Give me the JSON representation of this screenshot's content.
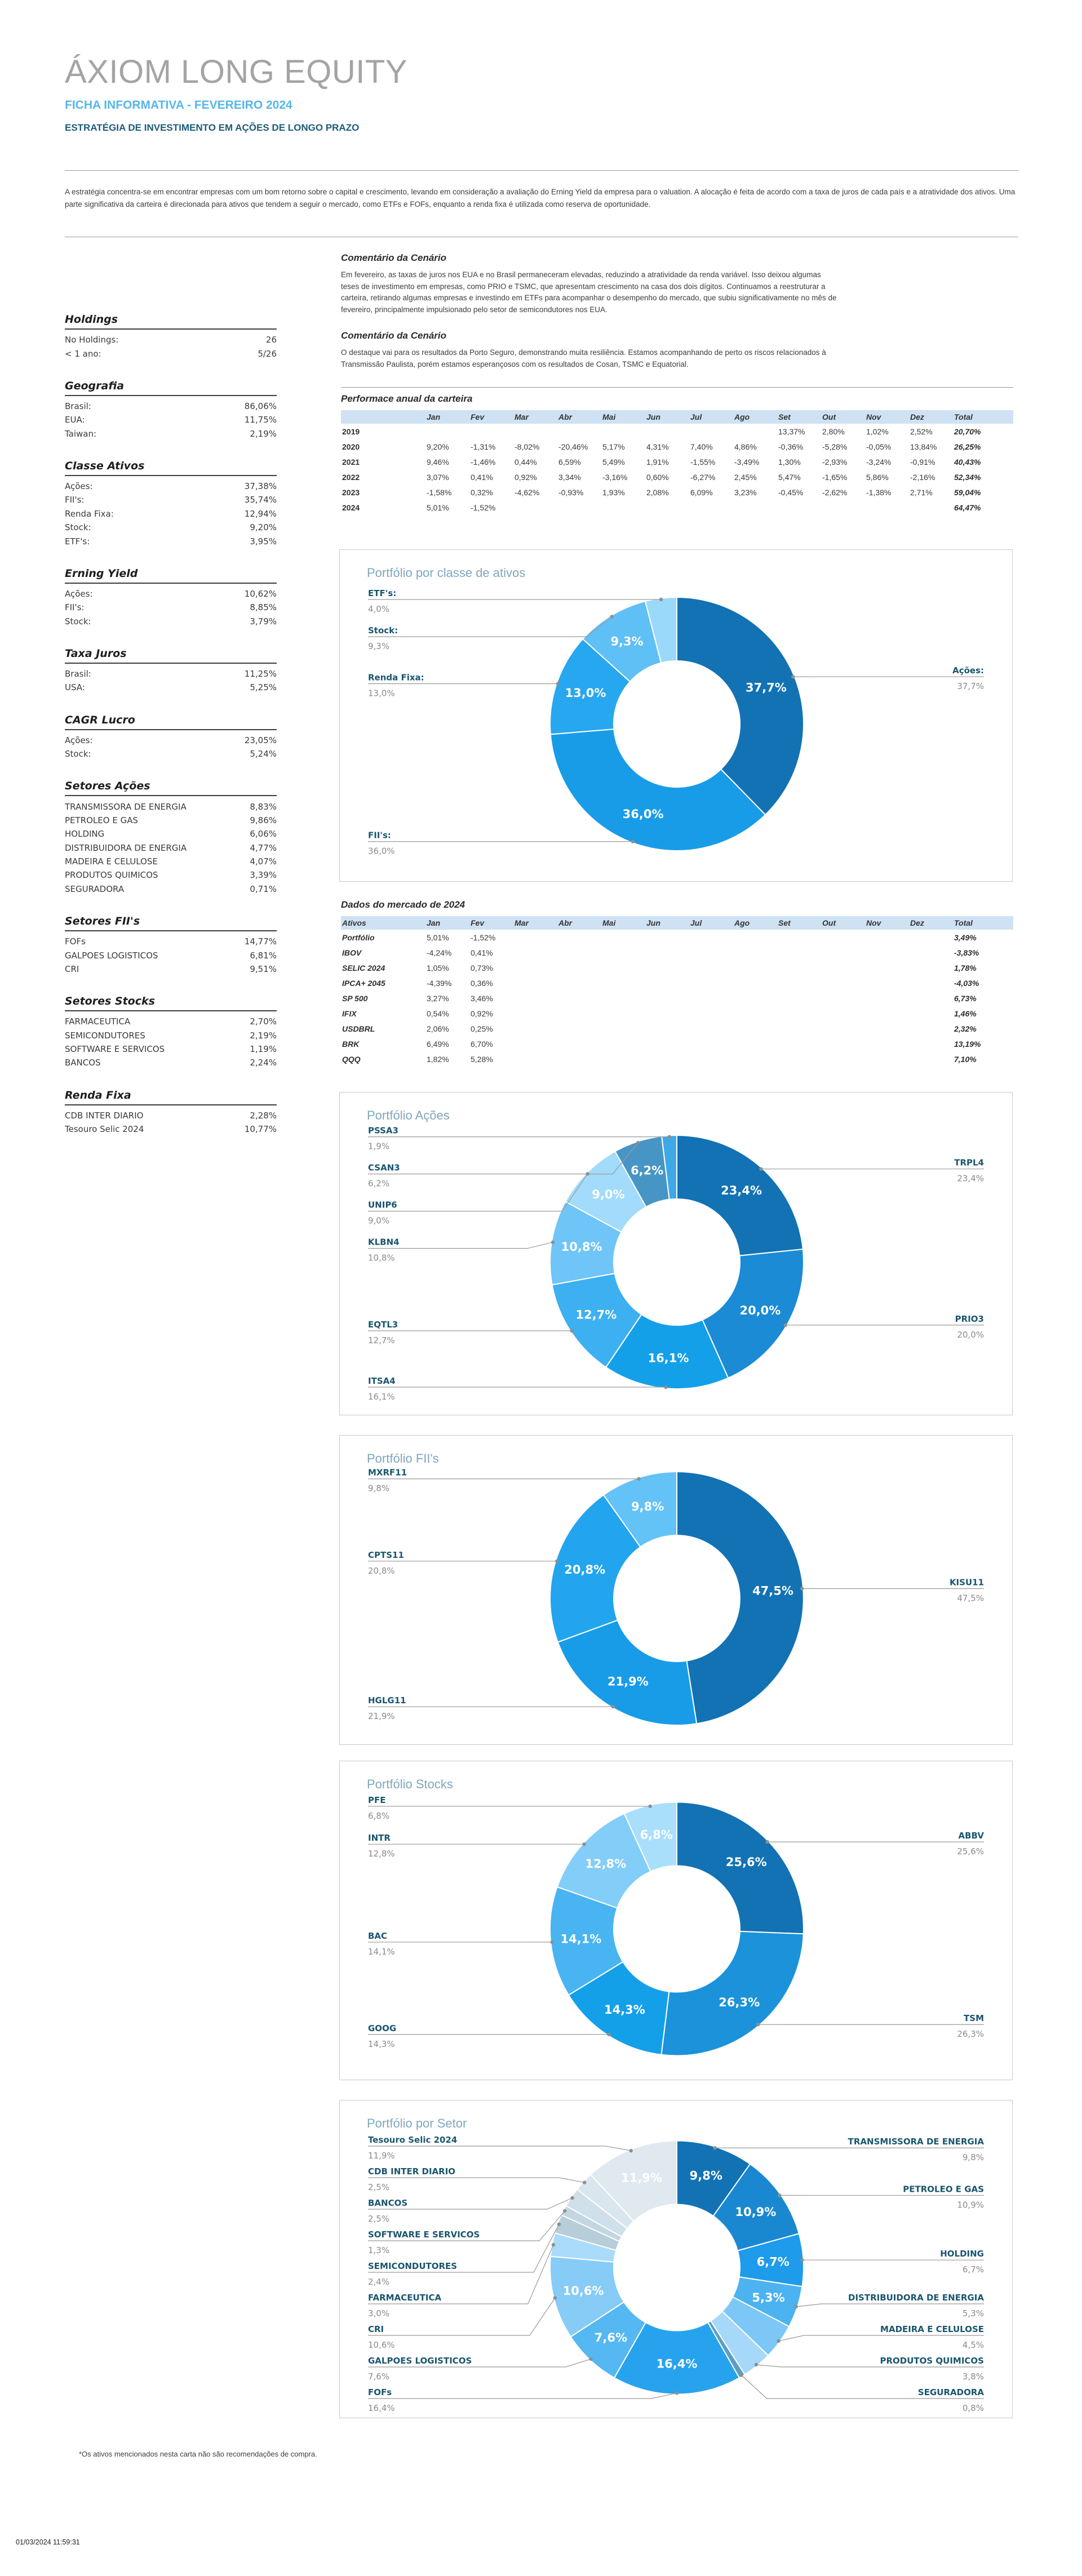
{
  "header": {
    "title": "ÁXIOM LONG EQUITY",
    "subtitle": "FICHA INFORMATIVA - FEVEREIRO 2024",
    "strategy_line": "ESTRATÉGIA DE INVESTIMENTO EM AÇÕES DE LONGO PRAZO",
    "intro": "A estratégia concentra-se em encontrar empresas com um bom retorno sobre o capital e crescimento, levando em consideração a avaliação do Erning Yield da empresa para o valuation. A alocação é feita de acordo com a taxa de juros de cada país e a atratividade dos ativos. Uma parte significativa da carteira é direcionada para ativos que tendem a seguir o mercado, como ETFs e FOFs, enquanto a renda fixa é utilizada como reserva de oportunidade."
  },
  "sidebar": {
    "sections": [
      {
        "title": "Holdings",
        "rows": [
          {
            "label": "No Holdings:",
            "value": "26"
          },
          {
            "label": "< 1 ano:",
            "value": "5/26"
          }
        ]
      },
      {
        "title": "Geografia",
        "rows": [
          {
            "label": "Brasil:",
            "value": "86,06%"
          },
          {
            "label": "EUA:",
            "value": "11,75%"
          },
          {
            "label": "Taiwan:",
            "value": "2,19%"
          }
        ]
      },
      {
        "title": "Classe Ativos",
        "rows": [
          {
            "label": "Ações:",
            "value": "37,38%"
          },
          {
            "label": "FII's:",
            "value": "35,74%"
          },
          {
            "label": "Renda Fixa:",
            "value": "12,94%"
          },
          {
            "label": "Stock:",
            "value": "9,20%"
          },
          {
            "label": "ETF's:",
            "value": "3,95%"
          }
        ]
      },
      {
        "title": "Erning Yield",
        "rows": [
          {
            "label": "Ações:",
            "value": "10,62%"
          },
          {
            "label": "FII's:",
            "value": "8,85%"
          },
          {
            "label": "Stock:",
            "value": "3,79%"
          }
        ]
      },
      {
        "title": "Taxa Juros",
        "rows": [
          {
            "label": "Brasil:",
            "value": "11,25%"
          },
          {
            "label": "USA:",
            "value": "5,25%"
          }
        ]
      },
      {
        "title": "CAGR Lucro",
        "rows": [
          {
            "label": "Ações:",
            "value": "23,05%"
          },
          {
            "label": "Stock:",
            "value": "5,24%"
          }
        ]
      },
      {
        "title": "Setores Ações",
        "rows": [
          {
            "label": "TRANSMISSORA DE ENERGIA",
            "value": "8,83%"
          },
          {
            "label": "PETROLEO E GAS",
            "value": "9,86%"
          },
          {
            "label": "HOLDING",
            "value": "6,06%"
          },
          {
            "label": "DISTRIBUIDORA DE ENERGIA",
            "value": "4,77%"
          },
          {
            "label": "MADEIRA E CELULOSE",
            "value": "4,07%"
          },
          {
            "label": "PRODUTOS QUIMICOS",
            "value": "3,39%"
          },
          {
            "label": "SEGURADORA",
            "value": "0,71%"
          }
        ]
      },
      {
        "title": "Setores FII's",
        "rows": [
          {
            "label": "FOFs",
            "value": "14,77%"
          },
          {
            "label": "GALPOES LOGISTICOS",
            "value": "6,81%"
          },
          {
            "label": "CRI",
            "value": "9,51%"
          }
        ]
      },
      {
        "title": "Setores Stocks",
        "rows": [
          {
            "label": "FARMACEUTICA",
            "value": "2,70%"
          },
          {
            "label": "SEMICONDUTORES",
            "value": "2,19%"
          },
          {
            "label": "SOFTWARE E SERVICOS",
            "value": "1,19%"
          },
          {
            "label": "BANCOS",
            "value": "2,24%"
          }
        ]
      },
      {
        "title": "Renda Fixa",
        "rows": [
          {
            "label": "CDB INTER DIARIO",
            "value": "2,28%"
          },
          {
            "label": "Tesouro Selic 2024",
            "value": "10,77%"
          }
        ]
      }
    ]
  },
  "comments": [
    {
      "title": "Comentário da Cenário",
      "body": "Em fevereiro, as taxas de juros nos EUA e no Brasil permaneceram elevadas, reduzindo a atratividade da renda variável. Isso deixou algumas teses de investimento em empresas, como PRIO e TSMC, que apresentam crescimento na casa dos dois dígitos. Continuamos a reestruturar a carteira, retirando algumas empresas e investindo em ETFs para acompanhar o desempenho do mercado, que subiu significativamente no mês de fevereiro, principalmente impulsionado pelo setor de semicondutores nos EUA."
    },
    {
      "title": "Comentário da Cenário",
      "body": "O destaque vai para os resultados da Porto Seguro, demonstrando muita resiliência. Estamos acompanhando de perto os riscos relacionados à Transmissão Paulista, porém estamos esperançosos com os resultados de Cosan, TSMC e Equatorial."
    }
  ],
  "performance_table": {
    "title": "Performace anual da carteira",
    "columns": [
      "",
      "Jan",
      "Fev",
      "Mar",
      "Abr",
      "Mai",
      "Jun",
      "Jul",
      "Ago",
      "Set",
      "Out",
      "Nov",
      "Dez",
      "Total"
    ],
    "rows": [
      {
        "label": "2019",
        "values": [
          "",
          "",
          "",
          "",
          "",
          "",
          "",
          "",
          "13,37%",
          "2,80%",
          "1,02%",
          "2,52%"
        ],
        "total": "20,70%"
      },
      {
        "label": "2020",
        "values": [
          "9,20%",
          "-1,31%",
          "-8,02%",
          "-20,46%",
          "5,17%",
          "4,31%",
          "7,40%",
          "4,86%",
          "-0,36%",
          "-5,28%",
          "-0,05%",
          "13,84%"
        ],
        "total": "26,25%"
      },
      {
        "label": "2021",
        "values": [
          "9,46%",
          "-1,46%",
          "0,44%",
          "6,59%",
          "5,49%",
          "1,91%",
          "-1,55%",
          "-3,49%",
          "1,30%",
          "-2,93%",
          "-3,24%",
          "-0,91%"
        ],
        "total": "40,43%"
      },
      {
        "label": "2022",
        "values": [
          "3,07%",
          "0,41%",
          "0,92%",
          "3,34%",
          "-3,16%",
          "0,60%",
          "-6,27%",
          "2,45%",
          "5,47%",
          "-1,65%",
          "5,86%",
          "-2,16%"
        ],
        "total": "52,34%"
      },
      {
        "label": "2023",
        "values": [
          "-1,58%",
          "0,32%",
          "-4,62%",
          "-0,93%",
          "1,93%",
          "2,08%",
          "6,09%",
          "3,23%",
          "-0,45%",
          "-2,62%",
          "-1,38%",
          "2,71%"
        ],
        "total": "59,04%"
      },
      {
        "label": "2024",
        "values": [
          "5,01%",
          "-1,52%",
          "",
          "",
          "",
          "",
          "",
          "",
          "",
          "",
          "",
          ""
        ],
        "total": "64,47%"
      }
    ]
  },
  "market_table": {
    "title": "Dados do mercado de 2024",
    "columns": [
      "Ativos",
      "Jan",
      "Fev",
      "Mar",
      "Abr",
      "Mai",
      "Jun",
      "Jul",
      "Ago",
      "Set",
      "Out",
      "Nov",
      "Dez",
      "Total"
    ],
    "rows": [
      {
        "label": "Portfólio",
        "values": [
          "5,01%",
          "-1,52%",
          "",
          "",
          "",
          "",
          "",
          "",
          "",
          "",
          "",
          ""
        ],
        "total": "3,49%"
      },
      {
        "label": "IBOV",
        "values": [
          "-4,24%",
          "0,41%",
          "",
          "",
          "",
          "",
          "",
          "",
          "",
          "",
          "",
          ""
        ],
        "total": "-3,83%"
      },
      {
        "label": "SELIC 2024",
        "values": [
          "1,05%",
          "0,73%",
          "",
          "",
          "",
          "",
          "",
          "",
          "",
          "",
          "",
          ""
        ],
        "total": "1,78%"
      },
      {
        "label": "IPCA+ 2045",
        "values": [
          "-4,39%",
          "0,36%",
          "",
          "",
          "",
          "",
          "",
          "",
          "",
          "",
          "",
          ""
        ],
        "total": "-4,03%"
      },
      {
        "label": "SP 500",
        "values": [
          "3,27%",
          "3,46%",
          "",
          "",
          "",
          "",
          "",
          "",
          "",
          "",
          "",
          ""
        ],
        "total": "6,73%"
      },
      {
        "label": "IFIX",
        "values": [
          "0,54%",
          "0,92%",
          "",
          "",
          "",
          "",
          "",
          "",
          "",
          "",
          "",
          ""
        ],
        "total": "1,46%"
      },
      {
        "label": "USDBRL",
        "values": [
          "2,06%",
          "0,25%",
          "",
          "",
          "",
          "",
          "",
          "",
          "",
          "",
          "",
          ""
        ],
        "total": "2,32%"
      },
      {
        "label": "BRK",
        "values": [
          "6,49%",
          "6,70%",
          "",
          "",
          "",
          "",
          "",
          "",
          "",
          "",
          "",
          ""
        ],
        "total": "13,19%"
      },
      {
        "label": "QQQ",
        "values": [
          "1,82%",
          "5,28%",
          "",
          "",
          "",
          "",
          "",
          "",
          "",
          "",
          "",
          ""
        ],
        "total": "7,10%"
      }
    ]
  },
  "chart_data": [
    {
      "type": "pie",
      "subtype": "donut",
      "title": "Portfólio por classe de ativos",
      "labels": [
        "Ações:",
        "FII's:",
        "Renda Fixa:",
        "Stock:",
        "ETF's:"
      ],
      "values": [
        37.7,
        36.0,
        13.0,
        9.3,
        4.0
      ],
      "display": [
        "37,7%",
        "36,0%",
        "13,0%",
        "9,3%",
        "4,0%"
      ],
      "colors": [
        "#1272b4",
        "#189ce8",
        "#27a7ef",
        "#5fc0f5",
        "#9bd9fb"
      ],
      "inner_label_min_pct": 5
    },
    {
      "type": "pie",
      "subtype": "donut",
      "title": "Portfólio Ações",
      "labels": [
        "TRPL4",
        "PRIO3",
        "ITSA4",
        "EQTL3",
        "KLBN4",
        "UNIP6",
        "CSAN3",
        "PSSA3"
      ],
      "values": [
        23.4,
        20.0,
        16.1,
        12.7,
        10.8,
        9.0,
        6.2,
        1.9
      ],
      "display": [
        "23,4%",
        "20,0%",
        "16,1%",
        "12,7%",
        "10,8%",
        "9,0%",
        "6,2%",
        "1,9%"
      ],
      "colors": [
        "#1272b4",
        "#1a8bd4",
        "#14a0e9",
        "#3db0f1",
        "#6fc5f7",
        "#a2dbfb",
        "#4795c4",
        "#3fa9e6"
      ],
      "inner_label_min_pct": 5
    },
    {
      "type": "pie",
      "subtype": "donut",
      "title": "Portfólio FII's",
      "labels": [
        "KISU11",
        "HGLG11",
        "CPTS11",
        "MXRF11"
      ],
      "values": [
        47.5,
        21.9,
        20.8,
        9.8
      ],
      "display": [
        "47,5%",
        "21,9%",
        "20,8%",
        "9,8%"
      ],
      "colors": [
        "#1272b4",
        "#189ce8",
        "#22a5ee",
        "#63c2f6"
      ],
      "inner_label_min_pct": 5
    },
    {
      "type": "pie",
      "subtype": "donut",
      "title": "Portfólio Stocks",
      "labels": [
        "ABBV",
        "TSM",
        "GOOG",
        "BAC",
        "INTR",
        "PFE"
      ],
      "values": [
        25.6,
        26.3,
        14.3,
        14.1,
        12.8,
        6.8
      ],
      "display": [
        "25,6%",
        "26,3%",
        "14,3%",
        "14,1%",
        "12,8%",
        "6,8%"
      ],
      "colors": [
        "#1272b4",
        "#1b92da",
        "#14a0e9",
        "#48b4f2",
        "#83cdf9",
        "#aadffc"
      ],
      "inner_label_min_pct": 5
    },
    {
      "type": "pie",
      "subtype": "donut",
      "title": "Portfólio por Setor",
      "labels": [
        "TRANSMISSORA DE ENERGIA",
        "PETROLEO E GAS",
        "HOLDING",
        "DISTRIBUIDORA DE ENERGIA",
        "MADEIRA E CELULOSE",
        "PRODUTOS QUIMICOS",
        "SEGURADORA",
        "FOFs",
        "GALPOES LOGISTICOS",
        "CRI",
        "FARMACEUTICA",
        "SEMICONDUTORES",
        "SOFTWARE E SERVICOS",
        "BANCOS",
        "CDB INTER DIARIO",
        "Tesouro Selic 2024"
      ],
      "values": [
        9.8,
        10.9,
        6.7,
        5.3,
        4.5,
        3.8,
        0.8,
        16.4,
        7.6,
        10.6,
        3.0,
        2.4,
        1.3,
        2.5,
        2.5,
        11.9
      ],
      "display": [
        "9,8%",
        "10,9%",
        "6,7%",
        "5,3%",
        "4,5%",
        "3,8%",
        "0,8%",
        "16,4%",
        "7,6%",
        "10,6%",
        "3,0%",
        "2,4%",
        "1,3%",
        "2,5%",
        "2,5%",
        "11,9%"
      ],
      "colors": [
        "#1272b4",
        "#1a88d0",
        "#1e9bea",
        "#4cb2f0",
        "#7cc7f6",
        "#a5d8f9",
        "#5e9dbf",
        "#27a3ee",
        "#55b8f2",
        "#86ccf7",
        "#abdbfa",
        "#b7cdd9",
        "#c3d6e1",
        "#cfe0ea",
        "#d9e6ee",
        "#e0e9ef"
      ],
      "inner_label_min_pct": 5
    }
  ],
  "footer": {
    "note": "*Os ativos mencionados nesta carta não são recomendações de compra.",
    "timestamp": "01/03/2024 11:59:31"
  }
}
